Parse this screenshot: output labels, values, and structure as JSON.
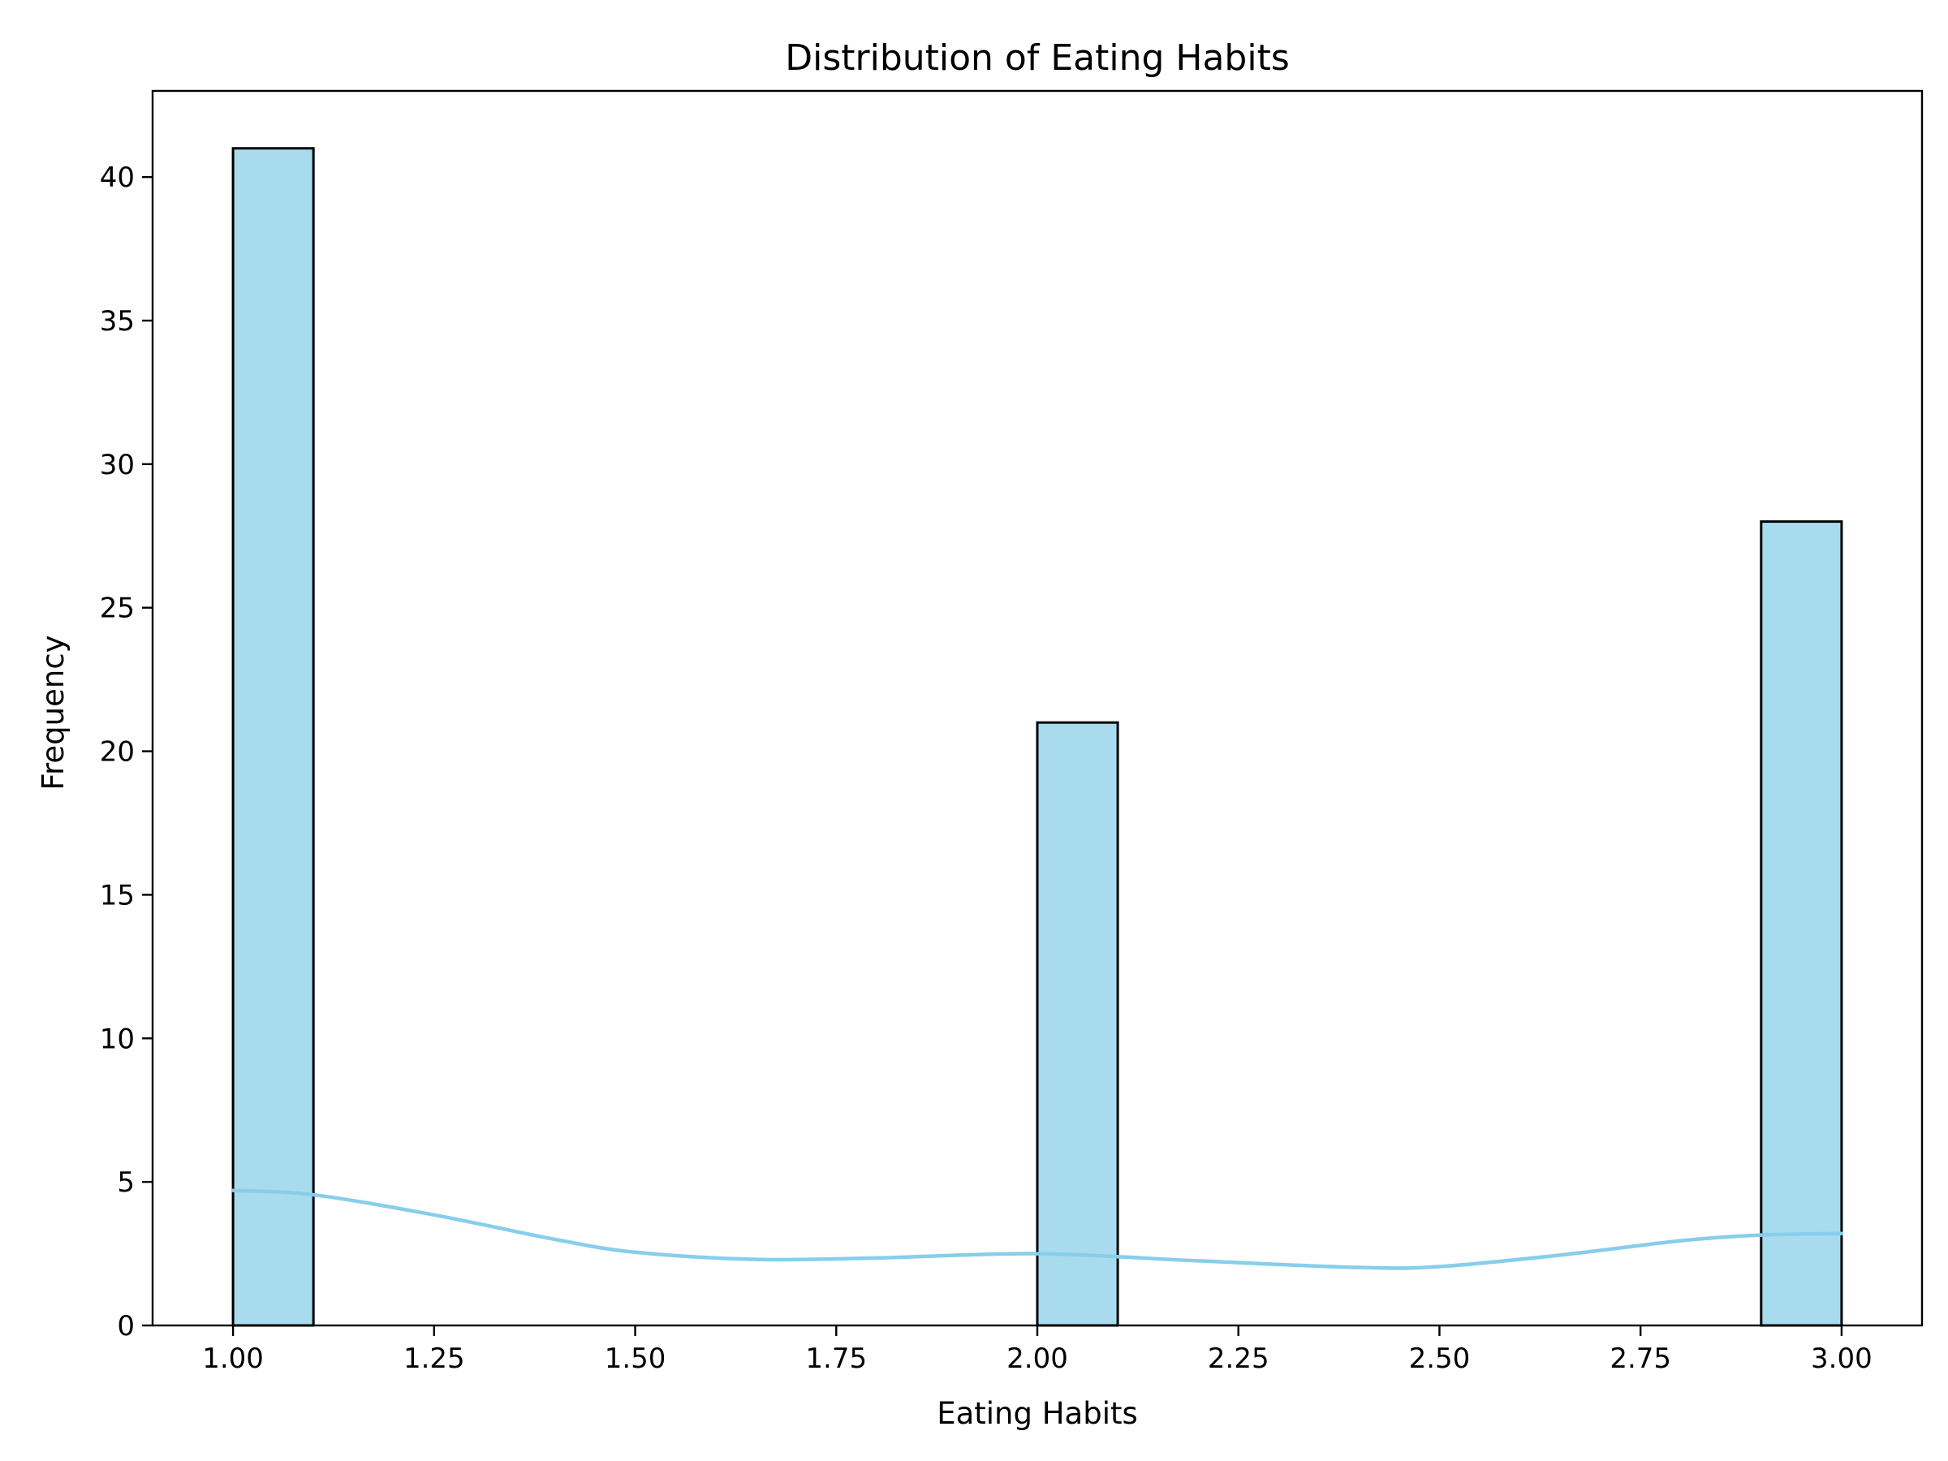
{
  "chart_data": {
    "type": "bar",
    "title": "Distribution of Eating Habits",
    "xlabel": "Eating Habits",
    "ylabel": "Frequency",
    "xlim": [
      0.9,
      3.1
    ],
    "ylim": [
      0,
      43
    ],
    "grid": false,
    "legend": "none",
    "x_ticks": [
      "1.00",
      "1.25",
      "1.50",
      "1.75",
      "2.00",
      "2.25",
      "2.50",
      "2.75",
      "3.00"
    ],
    "x_tick_values": [
      1.0,
      1.25,
      1.5,
      1.75,
      2.0,
      2.25,
      2.5,
      2.75,
      3.0
    ],
    "y_ticks": [
      "0",
      "5",
      "10",
      "15",
      "20",
      "25",
      "30",
      "35",
      "40"
    ],
    "y_tick_values": [
      0,
      5,
      10,
      15,
      20,
      25,
      30,
      35,
      40
    ],
    "bars": [
      {
        "x0": 1.0,
        "x1": 1.1,
        "value": 41
      },
      {
        "x0": 2.0,
        "x1": 2.1,
        "value": 21
      },
      {
        "x0": 2.9,
        "x1": 3.0,
        "value": 28
      }
    ],
    "kde": {
      "x": [
        1.0,
        1.1,
        1.25,
        1.4,
        1.5,
        1.65,
        1.8,
        2.0,
        2.2,
        2.4,
        2.5,
        2.65,
        2.8,
        2.9,
        3.0
      ],
      "y": [
        4.7,
        4.55,
        3.85,
        3.0,
        2.55,
        2.3,
        2.35,
        2.5,
        2.25,
        2.02,
        2.05,
        2.45,
        2.95,
        3.15,
        3.2
      ]
    },
    "colors": {
      "bar_fill": "#a8dbee",
      "bar_edge": "#000000",
      "kde_line": "#87ceeb"
    }
  }
}
